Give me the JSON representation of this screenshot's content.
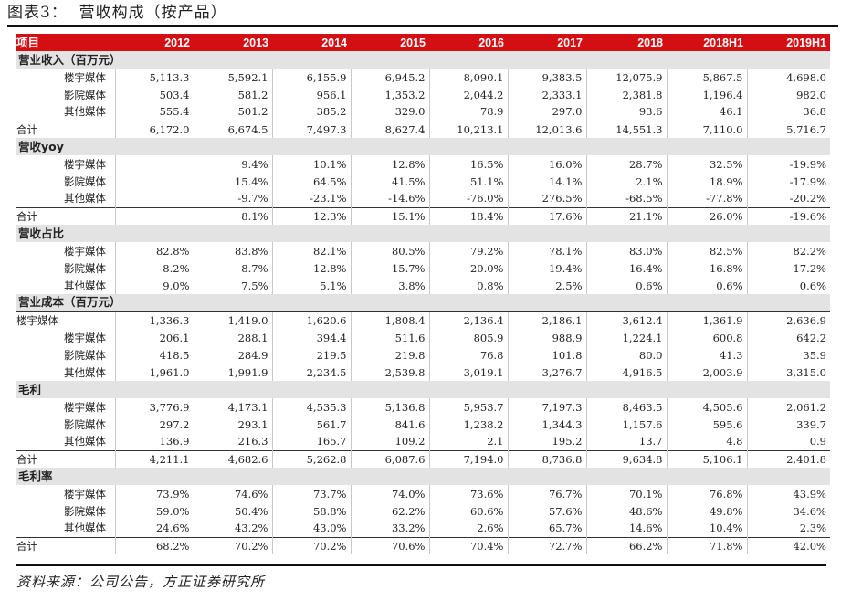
{
  "title": "图表3：  营收构成（按产品）",
  "source": "资料来源：公司公告，方正证券研究所",
  "header": [
    "项目",
    "2012",
    "2013",
    "2014",
    "2015",
    "2016",
    "2017",
    "2018",
    "2018H1",
    "2019H1"
  ],
  "rows": [
    {
      "type": "section",
      "label": "营业收入（百万元）"
    },
    {
      "type": "sub",
      "label": "楼宇媒体",
      "values": [
        "5,113.3",
        "5,592.1",
        "6,155.9",
        "6,945.2",
        "8,090.1",
        "9,383.5",
        "12,075.9",
        "5,867.5",
        "4,698.0"
      ]
    },
    {
      "type": "sub",
      "label": "影院媒体",
      "values": [
        "503.4",
        "581.2",
        "956.1",
        "1,353.2",
        "2,044.2",
        "2,333.1",
        "2,381.8",
        "1,196.4",
        "982.0"
      ]
    },
    {
      "type": "sub",
      "label": "其他媒体",
      "values": [
        "555.4",
        "501.2",
        "385.2",
        "329.0",
        "78.9",
        "297.0",
        "93.6",
        "46.1",
        "36.8"
      ]
    },
    {
      "type": "total",
      "label": "合计",
      "values": [
        "6,172.0",
        "6,674.5",
        "7,497.3",
        "8,627.4",
        "10,213.1",
        "12,013.6",
        "14,551.3",
        "7,110.0",
        "5,716.7"
      ]
    },
    {
      "type": "section",
      "label": "营收yoy"
    },
    {
      "type": "sub",
      "label": "楼宇媒体",
      "values": [
        "",
        "9.4%",
        "10.1%",
        "12.8%",
        "16.5%",
        "16.0%",
        "28.7%",
        "32.5%",
        "-19.9%"
      ]
    },
    {
      "type": "sub",
      "label": "影院媒体",
      "values": [
        "",
        "15.4%",
        "64.5%",
        "41.5%",
        "51.1%",
        "14.1%",
        "2.1%",
        "18.9%",
        "-17.9%"
      ]
    },
    {
      "type": "sub",
      "label": "其他媒体",
      "values": [
        "",
        "-9.7%",
        "-23.1%",
        "-14.6%",
        "-76.0%",
        "276.5%",
        "-68.5%",
        "-77.8%",
        "-20.2%"
      ]
    },
    {
      "type": "total",
      "label": "合计",
      "values": [
        "",
        "8.1%",
        "12.3%",
        "15.1%",
        "18.4%",
        "17.6%",
        "21.1%",
        "26.0%",
        "-19.6%"
      ]
    },
    {
      "type": "section",
      "label": "营收占比"
    },
    {
      "type": "sub",
      "label": "楼宇媒体",
      "values": [
        "82.8%",
        "83.8%",
        "82.1%",
        "80.5%",
        "79.2%",
        "78.1%",
        "83.0%",
        "82.5%",
        "82.2%"
      ]
    },
    {
      "type": "sub",
      "label": "影院媒体",
      "values": [
        "8.2%",
        "8.7%",
        "12.8%",
        "15.7%",
        "20.0%",
        "19.4%",
        "16.4%",
        "16.8%",
        "17.2%"
      ]
    },
    {
      "type": "sub",
      "label": "其他媒体",
      "values": [
        "9.0%",
        "7.5%",
        "5.1%",
        "3.8%",
        "0.8%",
        "2.5%",
        "0.6%",
        "0.6%",
        "0.6%"
      ]
    },
    {
      "type": "section",
      "label": "营业成本（百万元）"
    },
    {
      "type": "plain",
      "label": "楼宇媒体",
      "values": [
        "1,336.3",
        "1,419.0",
        "1,620.6",
        "1,808.4",
        "2,136.4",
        "2,186.1",
        "3,612.4",
        "1,361.9",
        "2,636.9"
      ]
    },
    {
      "type": "sub",
      "label": "楼宇媒体",
      "values": [
        "206.1",
        "288.1",
        "394.4",
        "511.6",
        "805.9",
        "988.9",
        "1,224.1",
        "600.8",
        "642.2"
      ]
    },
    {
      "type": "sub",
      "label": "影院媒体",
      "values": [
        "418.5",
        "284.9",
        "219.5",
        "219.8",
        "76.8",
        "101.8",
        "80.0",
        "41.3",
        "35.9"
      ]
    },
    {
      "type": "sub",
      "label": "其他媒体",
      "values": [
        "1,961.0",
        "1,991.9",
        "2,234.5",
        "2,539.8",
        "3,019.1",
        "3,276.7",
        "4,916.5",
        "2,003.9",
        "3,315.0"
      ]
    },
    {
      "type": "section",
      "label": "毛利"
    },
    {
      "type": "sub",
      "label": "楼宇媒体",
      "values": [
        "3,776.9",
        "4,173.1",
        "4,535.3",
        "5,136.8",
        "5,953.7",
        "7,197.3",
        "8,463.5",
        "4,505.6",
        "2,061.2"
      ]
    },
    {
      "type": "sub",
      "label": "影院媒体",
      "values": [
        "297.2",
        "293.1",
        "561.7",
        "841.6",
        "1,238.2",
        "1,344.3",
        "1,157.6",
        "595.6",
        "339.7"
      ]
    },
    {
      "type": "sub",
      "label": "其他媒体",
      "values": [
        "136.9",
        "216.3",
        "165.7",
        "109.2",
        "2.1",
        "195.2",
        "13.7",
        "4.8",
        "0.9"
      ]
    },
    {
      "type": "total",
      "label": "合计",
      "values": [
        "4,211.1",
        "4,682.6",
        "5,262.8",
        "6,087.6",
        "7,194.0",
        "8,736.8",
        "9,634.8",
        "5,106.1",
        "2,401.8"
      ]
    },
    {
      "type": "section",
      "label": "毛利率"
    },
    {
      "type": "sub",
      "label": "楼宇媒体",
      "values": [
        "73.9%",
        "74.6%",
        "73.7%",
        "74.0%",
        "73.6%",
        "76.7%",
        "70.1%",
        "76.8%",
        "43.9%"
      ]
    },
    {
      "type": "sub",
      "label": "影院媒体",
      "values": [
        "59.0%",
        "50.4%",
        "58.8%",
        "62.2%",
        "60.6%",
        "57.6%",
        "48.6%",
        "49.8%",
        "34.6%"
      ]
    },
    {
      "type": "sub",
      "label": "其他媒体",
      "values": [
        "24.6%",
        "43.2%",
        "43.0%",
        "33.2%",
        "2.6%",
        "65.7%",
        "14.6%",
        "10.4%",
        "2.3%"
      ]
    },
    {
      "type": "total",
      "label": "合计",
      "values": [
        "68.2%",
        "70.2%",
        "70.2%",
        "70.6%",
        "70.4%",
        "72.7%",
        "66.2%",
        "71.8%",
        "42.0%"
      ]
    }
  ]
}
